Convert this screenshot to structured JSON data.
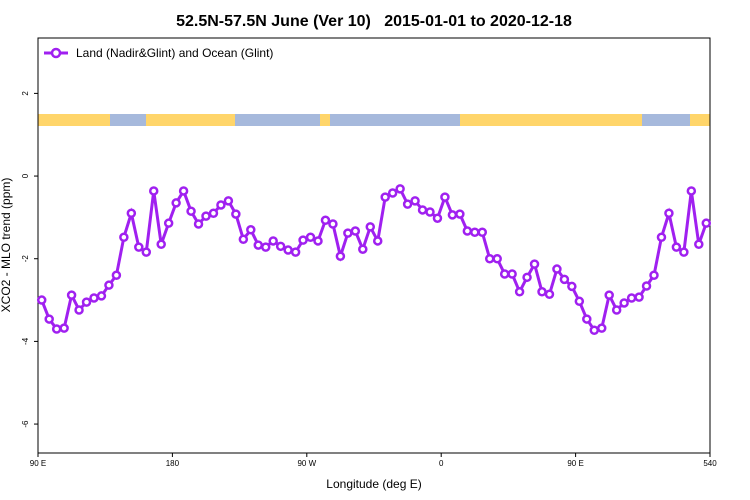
{
  "chart_data": {
    "type": "line",
    "title": "52.5N-57.5N June (Ver 10)   2015-01-01 to 2020-12-18",
    "x_label": "Longitude (deg E)",
    "y_label": "XCO2 - MLO trend (ppm)",
    "xlim": [
      90,
      540
    ],
    "ylim": [
      -6.7,
      3.34
    ],
    "xticks": [
      {
        "value": 90,
        "label": "90 E"
      },
      180,
      {
        "value": 270,
        "label": "90 W"
      },
      {
        "value": 360,
        "label": "0"
      },
      {
        "value": 450,
        "label": "90 E"
      },
      540
    ],
    "yticks": [
      -6,
      -4,
      -2,
      0,
      2
    ],
    "legend": "top-left",
    "x": [
      92.5,
      97.5,
      102.5,
      107.5,
      112.5,
      117.5,
      122.5,
      127.5,
      132.5,
      137.5,
      142.5,
      147.5,
      152.5,
      157.5,
      162.5,
      167.5,
      172.5,
      177.5,
      182.5,
      187.5,
      192.5,
      197.5,
      202.5,
      207.5,
      212.5,
      217.5,
      222.5,
      227.5,
      232.5,
      237.5,
      242.5,
      247.5,
      252.5,
      257.5,
      262.5,
      267.5,
      272.5,
      277.5,
      282.5,
      287.5,
      292.5,
      297.5,
      302.5,
      307.5,
      312.5,
      317.5,
      322.5,
      327.5,
      332.5,
      337.5,
      342.5,
      347.5,
      352.5,
      357.5,
      362.5,
      367.5,
      372.5,
      377.5,
      382.5,
      387.5,
      392.5,
      397.5,
      402.5,
      407.5,
      412.5,
      417.5,
      422.5,
      427.5,
      432.5,
      437.5,
      442.5,
      447.5,
      452.5,
      457.5,
      462.5,
      467.5,
      472.5,
      477.5,
      482.5,
      487.5,
      492.5,
      497.5,
      502.5,
      507.5,
      512.5,
      517.5,
      522.5,
      527.5,
      532.5,
      537.5
    ],
    "series": [
      {
        "name": "Land (Nadir&Glint) and Ocean (Glint)",
        "color": "#a020f0",
        "values": [
          -3.0,
          -3.46,
          -3.7,
          -3.68,
          -2.88,
          -3.24,
          -3.05,
          -2.95,
          -2.9,
          -2.64,
          -2.4,
          -1.48,
          -0.9,
          -1.72,
          -1.84,
          -0.36,
          -1.65,
          -1.14,
          -0.65,
          -0.36,
          -0.85,
          -1.16,
          -0.97,
          -0.9,
          -0.7,
          -0.6,
          -0.92,
          -1.53,
          -1.3,
          -1.67,
          -1.72,
          -1.57,
          -1.7,
          -1.79,
          -1.84,
          -1.55,
          -1.48,
          -1.57,
          -1.07,
          -1.16,
          -1.94,
          -1.38,
          -1.33,
          -1.77,
          -1.23,
          -1.57,
          -0.51,
          -0.41,
          -0.31,
          -0.68,
          -0.6,
          -0.82,
          -0.87,
          -1.02,
          -0.51,
          -0.94,
          -0.92,
          -1.33,
          -1.36,
          -1.36,
          -2.0,
          -2.0,
          -2.37,
          -2.37,
          -2.8,
          -2.45,
          -2.13,
          -2.8,
          -2.86,
          -2.25,
          -2.5,
          -2.67,
          -3.03,
          -3.46,
          -3.73,
          -3.68,
          -2.88,
          -3.24,
          -3.07,
          -2.95,
          -2.93,
          -2.66,
          -2.4,
          -1.48,
          -0.9,
          -1.72,
          -1.84,
          -0.36,
          -1.65,
          -1.14
        ]
      }
    ]
  }
}
